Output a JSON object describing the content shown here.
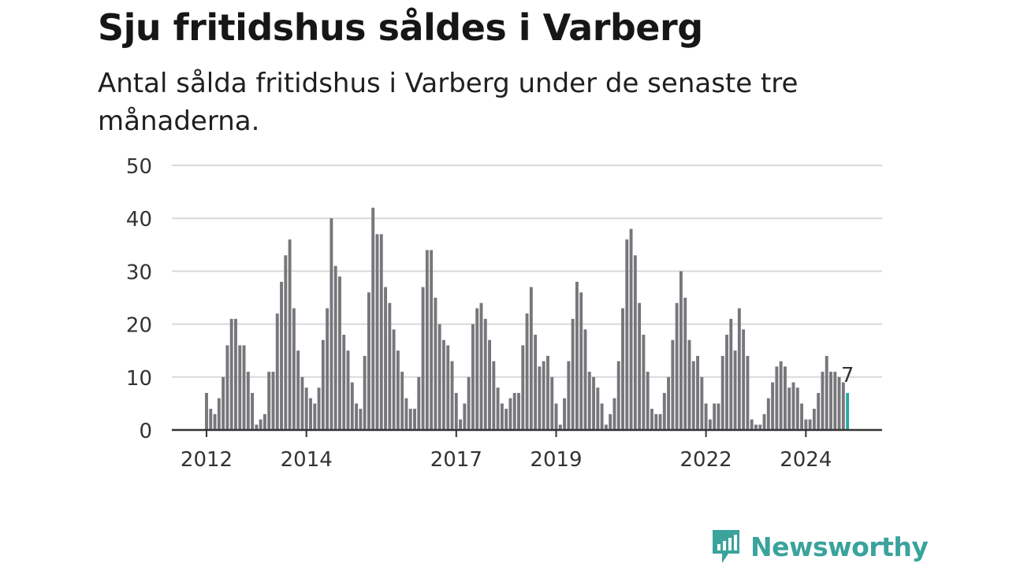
{
  "title": "Sju fritidshus såldes i Varberg",
  "subtitle": "Antal sålda fritidshus i Varberg under de senaste tre månaderna.",
  "brand": {
    "name": "Newsworthy",
    "icon": "bar-chart-speech-icon",
    "color": "#3aa39c"
  },
  "colors": {
    "bar": "#77767b",
    "highlight": "#2aa7a0",
    "grid": "#d9d9d9",
    "axis": "#333333"
  },
  "chart_data": {
    "type": "bar",
    "title": "Sju fritidshus såldes i Varberg",
    "subtitle": "Antal sålda fritidshus i Varberg under de senaste tre månaderna.",
    "xlabel": "",
    "ylabel": "",
    "ylim": [
      0,
      50
    ],
    "yticks": [
      0,
      10,
      20,
      30,
      40,
      50
    ],
    "xtick_labels": [
      "2012",
      "2014",
      "2017",
      "2019",
      "2022",
      "2024"
    ],
    "start": "2012-01",
    "frequency": "monthly",
    "grid": true,
    "legend": "none",
    "highlight_label": "7",
    "values": [
      7,
      4,
      3,
      6,
      10,
      16,
      21,
      21,
      16,
      16,
      11,
      7,
      1,
      2,
      3,
      11,
      11,
      22,
      28,
      33,
      36,
      23,
      15,
      10,
      8,
      6,
      5,
      8,
      17,
      23,
      40,
      31,
      29,
      18,
      15,
      9,
      5,
      4,
      14,
      26,
      42,
      37,
      37,
      27,
      24,
      19,
      15,
      11,
      6,
      4,
      4,
      10,
      27,
      34,
      34,
      25,
      20,
      17,
      16,
      13,
      7,
      2,
      5,
      10,
      20,
      23,
      24,
      21,
      17,
      13,
      8,
      5,
      4,
      6,
      7,
      7,
      16,
      22,
      27,
      18,
      12,
      13,
      14,
      10,
      5,
      1,
      6,
      13,
      21,
      28,
      26,
      19,
      11,
      10,
      8,
      5,
      1,
      3,
      6,
      13,
      23,
      36,
      38,
      33,
      24,
      18,
      11,
      4,
      3,
      3,
      7,
      10,
      17,
      24,
      30,
      25,
      17,
      13,
      14,
      10,
      5,
      2,
      5,
      5,
      14,
      18,
      21,
      15,
      23,
      19,
      14,
      2,
      1,
      1,
      3,
      6,
      9,
      12,
      13,
      12,
      8,
      9,
      8,
      5,
      2,
      2,
      4,
      7,
      11,
      14,
      11,
      11,
      10,
      9,
      7
    ]
  }
}
